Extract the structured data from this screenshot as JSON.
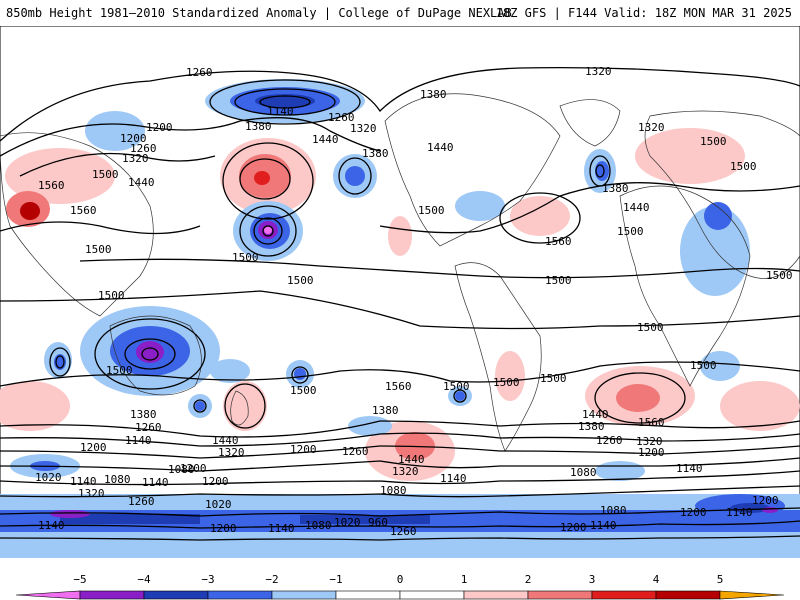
{
  "header": {
    "left_title": "850mb Height 1981–2010 Standardized Anomaly | College of DuPage NEXLAB",
    "right_title": "18Z GFS | F144 Valid: 18Z MON MAR 31 2025"
  },
  "contour_labels": [
    "1260",
    "1320",
    "1380",
    "1140",
    "1260",
    "1320",
    "1380",
    "1440",
    "1380",
    "1440",
    "1200",
    "1260",
    "1320",
    "1500",
    "1440",
    "1500",
    "1560",
    "1560",
    "1500",
    "1500",
    "1500",
    "1500",
    "1500",
    "1500",
    "1380",
    "1500",
    "1440",
    "1500",
    "1500",
    "1320",
    "1500",
    "1500",
    "1560",
    "1560",
    "1500",
    "1500",
    "1500",
    "1500",
    "1500",
    "1380",
    "1260",
    "1140",
    "1200",
    "1440",
    "1320",
    "1200",
    "1260",
    "1440",
    "1320",
    "1380",
    "1440",
    "1560",
    "1380",
    "1260",
    "1320",
    "1200",
    "1140",
    "1080",
    "1020",
    "1140",
    "1080",
    "1140",
    "1200",
    "1320",
    "1260",
    "1200",
    "1080",
    "1140",
    "1080",
    "1020",
    "1200",
    "1140",
    "1080",
    "1020",
    "960",
    "1260",
    "1200",
    "1140",
    "1080",
    "1200",
    "1140",
    "1200",
    "1140",
    "1200"
  ],
  "colorbar": {
    "ticks": [
      "−5",
      "−4",
      "−3",
      "−2",
      "−1",
      "0",
      "1",
      "2",
      "3",
      "4",
      "5"
    ],
    "colors": {
      "lt_m5": "#f06ef0",
      "m5_m4": "#8a1fc8",
      "m4_m3": "#1e3cb4",
      "m3_m2": "#3c64e6",
      "m2_m1": "#9ec8f5",
      "m1_0": "#ffffff",
      "p0_1": "#ffffff",
      "p1_2": "#fcc8c8",
      "p2_3": "#f07878",
      "p3_4": "#e01e1e",
      "p4_5": "#b40000",
      "gt_p5": "#f5a500"
    }
  }
}
